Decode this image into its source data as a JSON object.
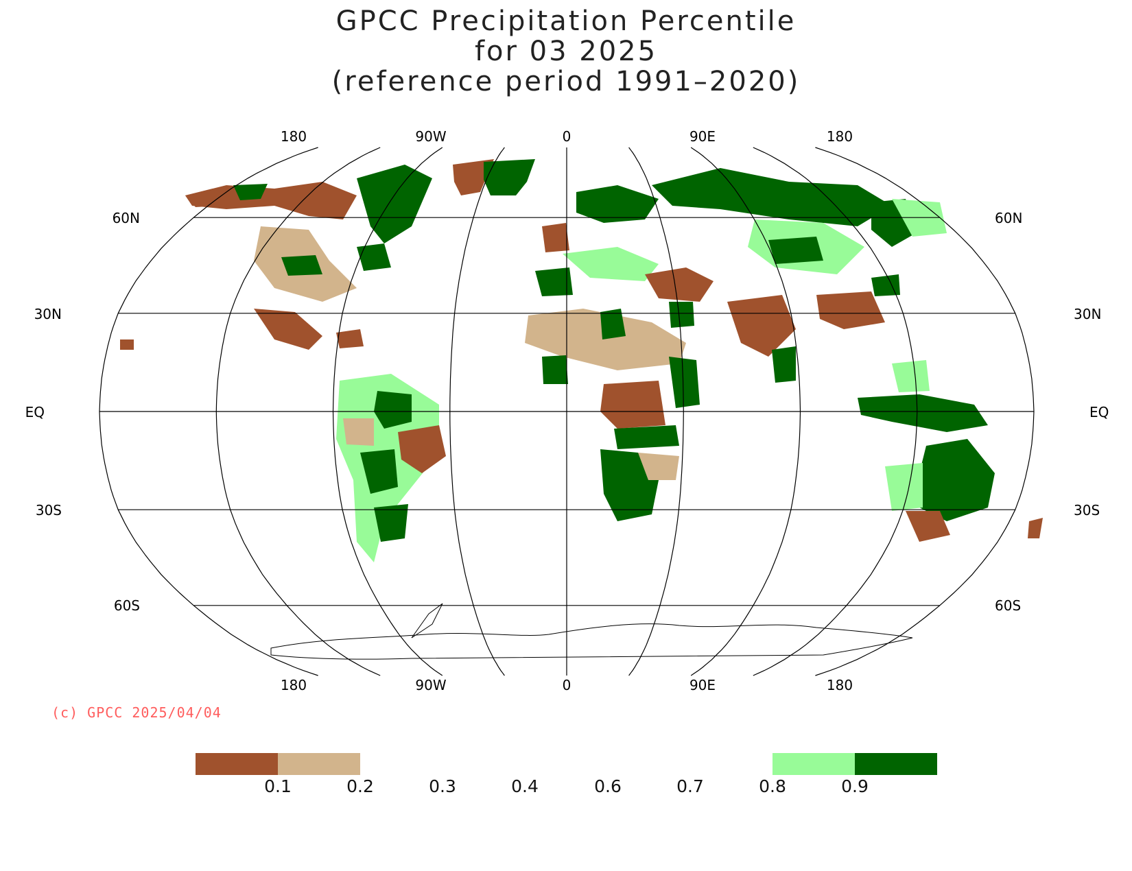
{
  "title": {
    "line1": "GPCC Precipitation Percentile",
    "line2": "for 03 2025",
    "line3": "(reference period 1991–2020)"
  },
  "axes": {
    "lon_labels": [
      "180",
      "90W",
      "0",
      "90E",
      "180"
    ],
    "lat_labels_left": [
      "60N",
      "30N",
      "EQ",
      "30S",
      "60S"
    ],
    "lat_labels_right": [
      "60N",
      "30N",
      "EQ",
      "30S",
      "60S"
    ]
  },
  "credit": "(c) GPCC 2025/04/04",
  "legend": {
    "ticks": [
      "0.1",
      "0.2",
      "0.3",
      "0.4",
      "0.6",
      "0.7",
      "0.8",
      "0.9"
    ],
    "swatches": [
      {
        "name": "below-0.1",
        "color": "#a0522d"
      },
      {
        "name": "0.1-0.2",
        "color": "#d2b48c"
      },
      {
        "name": "0.8-0.9",
        "color": "#98fb98"
      },
      {
        "name": "above-0.9",
        "color": "#006400"
      }
    ]
  },
  "colors": {
    "dry_strong": "#a0522d",
    "dry": "#d2b48c",
    "wet": "#98fb98",
    "wet_strong": "#006400"
  }
}
